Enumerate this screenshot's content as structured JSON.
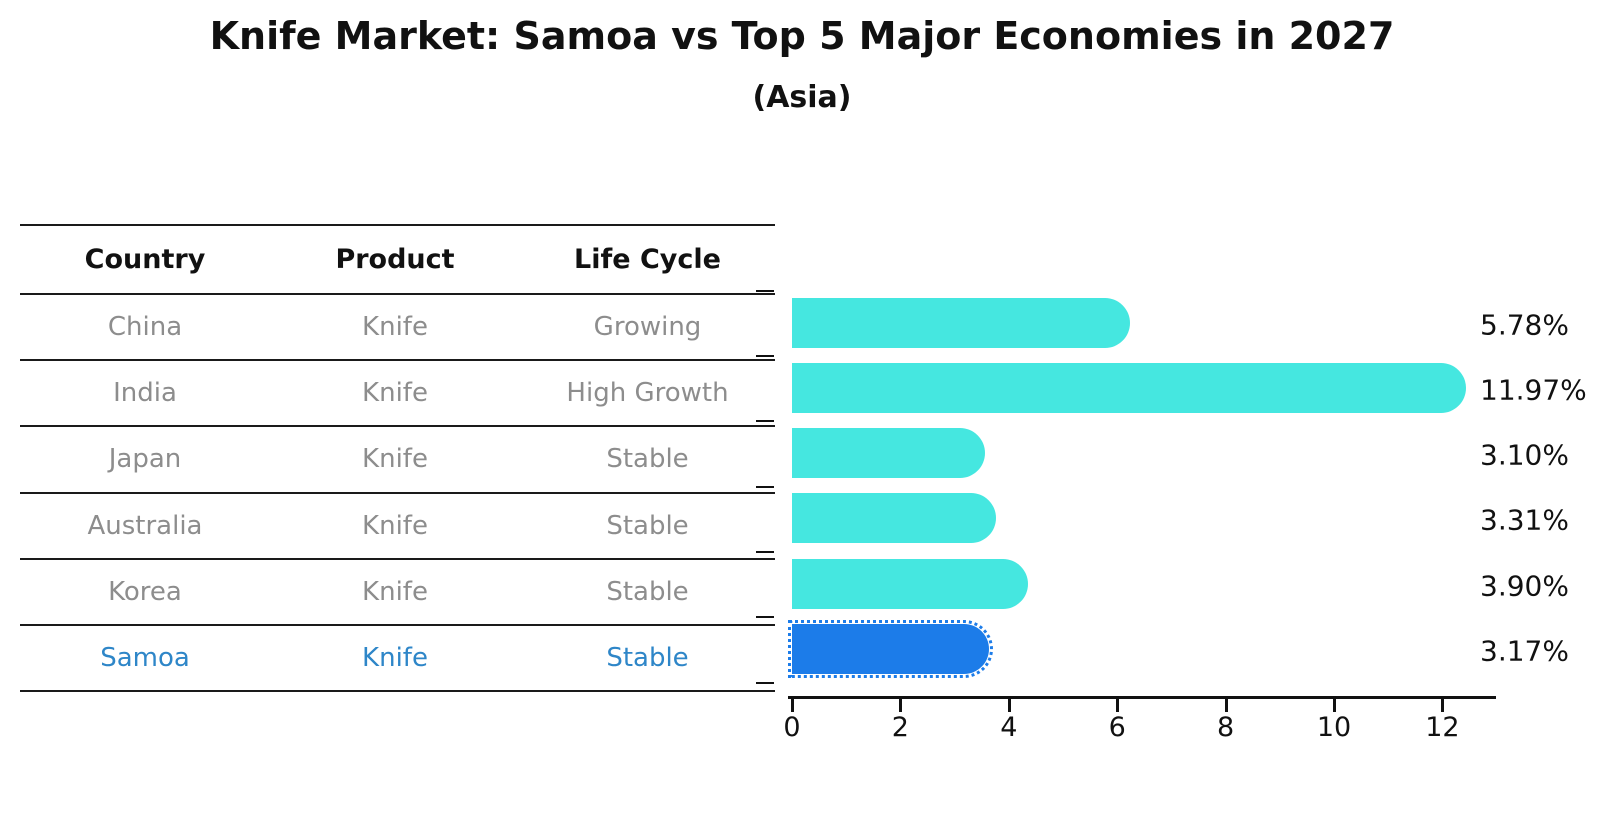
{
  "title": "Knife Market: Samoa vs Top 5 Major Economies in 2027",
  "subtitle": "(Asia)",
  "table": {
    "headers": [
      "Country",
      "Product",
      "Life Cycle"
    ],
    "rows": [
      {
        "country": "China",
        "product": "Knife",
        "life_cycle": "Growing",
        "highlight": false
      },
      {
        "country": "India",
        "product": "Knife",
        "life_cycle": "High Growth",
        "highlight": false
      },
      {
        "country": "Japan",
        "product": "Knife",
        "life_cycle": "Stable",
        "highlight": false
      },
      {
        "country": "Australia",
        "product": "Knife",
        "life_cycle": "Stable",
        "highlight": false
      },
      {
        "country": "Korea",
        "product": "Knife",
        "life_cycle": "Stable",
        "highlight": false
      },
      {
        "country": "Samoa",
        "product": "Knife",
        "life_cycle": "Stable",
        "highlight": true
      }
    ]
  },
  "chart_data": {
    "type": "bar",
    "orientation": "horizontal",
    "title": "Knife Market: Samoa vs Top 5 Major Economies in 2027",
    "subtitle": "(Asia)",
    "categories": [
      "China",
      "India",
      "Japan",
      "Australia",
      "Korea",
      "Samoa"
    ],
    "values": [
      5.78,
      11.97,
      3.1,
      3.31,
      3.9,
      3.17
    ],
    "value_labels": [
      "5.78%",
      "11.97%",
      "3.10%",
      "3.31%",
      "3.90%",
      "3.17%"
    ],
    "unit": "%",
    "x_ticks": [
      0,
      2,
      4,
      6,
      8,
      10,
      12
    ],
    "xlim": [
      0,
      13
    ],
    "grid": false,
    "legend": "none",
    "highlight_category": "Samoa",
    "colors": {
      "default_bar": "#45e7e0",
      "highlight_bar": "#1c7ce9",
      "highlight_text": "#2e86c8",
      "row_text": "#8d8d8d",
      "header_text": "#111111",
      "value_label_text": "#111111",
      "axis": "#111111"
    }
  }
}
